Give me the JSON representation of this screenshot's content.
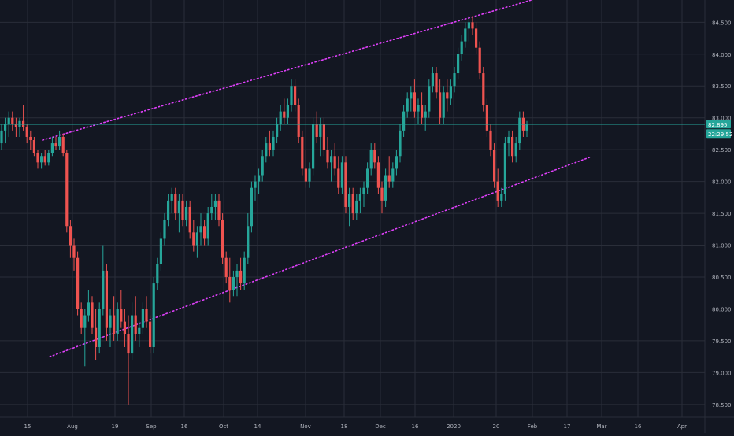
{
  "theme": {
    "background": "#131722",
    "grid": "#2a2e39",
    "text": "#b2b5be",
    "up": "#26a69a",
    "down": "#ef5350",
    "channel": "#e040fb",
    "price_line": "#26a69a"
  },
  "chart_data": {
    "type": "candlestick",
    "title": "",
    "xlabel": "",
    "ylabel": "",
    "ylim": [
      78.3,
      84.85
    ],
    "y_ticks": [
      "78.500",
      "79.000",
      "79.500",
      "80.000",
      "80.500",
      "81.000",
      "81.500",
      "82.000",
      "82.500",
      "83.000",
      "83.500",
      "84.000",
      "84.500"
    ],
    "x_ticks": [
      "15",
      "Aug",
      "19",
      "Sep",
      "16",
      "Oct",
      "14",
      "Nov",
      "18",
      "Dec",
      "16",
      "2020",
      "20",
      "Feb",
      "17",
      "Mar",
      "16",
      "Apr"
    ],
    "last_price": "82.895",
    "countdown": "22:29:52",
    "channel_upper": {
      "start": [
        0,
        82.65
      ],
      "end": [
        135,
        84.85
      ]
    },
    "channel_lower": {
      "start": [
        2,
        79.25
      ],
      "end": [
        151,
        82.38
      ]
    },
    "ohlc": [
      [
        82.6,
        82.9,
        82.5,
        82.8
      ],
      [
        82.8,
        83.0,
        82.6,
        82.9
      ],
      [
        82.9,
        83.1,
        82.7,
        83.0
      ],
      [
        83.0,
        83.1,
        82.8,
        82.9
      ],
      [
        82.9,
        83.0,
        82.7,
        82.85
      ],
      [
        82.85,
        83.0,
        82.7,
        82.95
      ],
      [
        82.95,
        83.2,
        82.8,
        82.85
      ],
      [
        82.85,
        82.9,
        82.6,
        82.7
      ],
      [
        82.7,
        82.8,
        82.5,
        82.65
      ],
      [
        82.65,
        82.7,
        82.4,
        82.45
      ],
      [
        82.45,
        82.5,
        82.2,
        82.3
      ],
      [
        82.3,
        82.45,
        82.2,
        82.4
      ],
      [
        82.4,
        82.5,
        82.25,
        82.3
      ],
      [
        82.3,
        82.5,
        82.25,
        82.45
      ],
      [
        82.45,
        82.7,
        82.4,
        82.6
      ],
      [
        82.6,
        82.7,
        82.5,
        82.55
      ],
      [
        82.55,
        82.8,
        82.5,
        82.7
      ],
      [
        82.7,
        82.75,
        82.4,
        82.45
      ],
      [
        82.45,
        82.5,
        81.2,
        81.3
      ],
      [
        81.3,
        81.4,
        80.8,
        81.0
      ],
      [
        81.0,
        81.1,
        80.6,
        80.8
      ],
      [
        80.8,
        80.9,
        79.9,
        80.0
      ],
      [
        80.0,
        80.1,
        79.6,
        79.7
      ],
      [
        79.7,
        80.0,
        79.1,
        79.9
      ],
      [
        79.9,
        80.3,
        79.8,
        80.1
      ],
      [
        80.1,
        80.2,
        79.6,
        79.7
      ],
      [
        79.7,
        80.0,
        79.2,
        79.4
      ],
      [
        79.4,
        80.1,
        79.3,
        80.0
      ],
      [
        80.0,
        81.0,
        79.9,
        80.6
      ],
      [
        80.6,
        80.7,
        79.5,
        79.7
      ],
      [
        79.7,
        80.0,
        79.4,
        79.9
      ],
      [
        79.9,
        80.2,
        79.5,
        79.6
      ],
      [
        79.6,
        80.1,
        79.5,
        80.0
      ],
      [
        80.0,
        80.3,
        79.7,
        79.8
      ],
      [
        79.8,
        80.0,
        79.4,
        79.6
      ],
      [
        79.6,
        79.9,
        78.5,
        79.3
      ],
      [
        79.3,
        80.1,
        79.2,
        79.9
      ],
      [
        79.9,
        80.2,
        79.5,
        79.6
      ],
      [
        79.6,
        79.8,
        79.4,
        79.7
      ],
      [
        79.7,
        80.1,
        79.6,
        80.0
      ],
      [
        80.0,
        80.2,
        79.7,
        79.8
      ],
      [
        79.8,
        79.9,
        79.3,
        79.4
      ],
      [
        79.4,
        80.5,
        79.3,
        80.4
      ],
      [
        80.4,
        80.8,
        80.3,
        80.7
      ],
      [
        80.7,
        81.2,
        80.6,
        81.1
      ],
      [
        81.1,
        81.5,
        81.0,
        81.4
      ],
      [
        81.4,
        81.8,
        81.3,
        81.7
      ],
      [
        81.7,
        81.9,
        81.5,
        81.8
      ],
      [
        81.8,
        81.9,
        81.4,
        81.5
      ],
      [
        81.5,
        81.8,
        81.2,
        81.7
      ],
      [
        81.7,
        81.8,
        81.3,
        81.4
      ],
      [
        81.4,
        81.7,
        81.3,
        81.6
      ],
      [
        81.6,
        81.7,
        81.1,
        81.2
      ],
      [
        81.2,
        81.4,
        80.9,
        81.0
      ],
      [
        81.0,
        81.3,
        80.8,
        81.2
      ],
      [
        81.2,
        81.5,
        81.0,
        81.3
      ],
      [
        81.3,
        81.4,
        81.0,
        81.1
      ],
      [
        81.1,
        81.6,
        81.0,
        81.5
      ],
      [
        81.5,
        81.8,
        81.4,
        81.6
      ],
      [
        81.6,
        81.8,
        81.4,
        81.7
      ],
      [
        81.7,
        81.8,
        81.3,
        81.4
      ],
      [
        81.4,
        81.5,
        80.7,
        80.8
      ],
      [
        80.8,
        80.9,
        80.4,
        80.5
      ],
      [
        80.5,
        80.8,
        80.1,
        80.3
      ],
      [
        80.3,
        80.6,
        80.2,
        80.5
      ],
      [
        80.5,
        80.7,
        80.2,
        80.6
      ],
      [
        80.6,
        80.8,
        80.3,
        80.4
      ],
      [
        80.4,
        80.9,
        80.3,
        80.8
      ],
      [
        80.8,
        81.5,
        80.7,
        81.3
      ],
      [
        81.3,
        82.0,
        81.2,
        81.9
      ],
      [
        81.9,
        82.1,
        81.7,
        82.0
      ],
      [
        82.0,
        82.2,
        81.8,
        82.1
      ],
      [
        82.1,
        82.5,
        82.0,
        82.4
      ],
      [
        82.4,
        82.7,
        82.3,
        82.6
      ],
      [
        82.6,
        82.8,
        82.4,
        82.5
      ],
      [
        82.5,
        82.8,
        82.4,
        82.7
      ],
      [
        82.7,
        83.0,
        82.6,
        82.9
      ],
      [
        82.9,
        83.2,
        82.8,
        83.1
      ],
      [
        83.1,
        83.3,
        82.9,
        83.0
      ],
      [
        83.0,
        83.3,
        82.9,
        83.2
      ],
      [
        83.2,
        83.6,
        83.1,
        83.5
      ],
      [
        83.5,
        83.6,
        83.1,
        83.2
      ],
      [
        83.2,
        83.3,
        82.6,
        82.7
      ],
      [
        82.7,
        82.8,
        82.1,
        82.2
      ],
      [
        82.2,
        82.5,
        81.9,
        82.0
      ],
      [
        82.0,
        82.3,
        81.9,
        82.2
      ],
      [
        82.2,
        83.0,
        82.1,
        82.9
      ],
      [
        82.9,
        83.1,
        82.6,
        82.7
      ],
      [
        82.7,
        83.0,
        82.4,
        82.9
      ],
      [
        82.9,
        83.0,
        82.4,
        82.5
      ],
      [
        82.5,
        82.7,
        82.2,
        82.3
      ],
      [
        82.3,
        82.5,
        82.0,
        82.4
      ],
      [
        82.4,
        82.6,
        82.1,
        82.2
      ],
      [
        82.2,
        82.4,
        81.8,
        81.9
      ],
      [
        81.9,
        82.4,
        81.8,
        82.3
      ],
      [
        82.3,
        82.4,
        81.5,
        81.6
      ],
      [
        81.6,
        81.9,
        81.3,
        81.8
      ],
      [
        81.8,
        81.9,
        81.4,
        81.5
      ],
      [
        81.5,
        81.8,
        81.4,
        81.7
      ],
      [
        81.7,
        81.9,
        81.5,
        81.8
      ],
      [
        81.8,
        82.0,
        81.6,
        81.9
      ],
      [
        81.9,
        82.3,
        81.8,
        82.2
      ],
      [
        82.2,
        82.6,
        82.1,
        82.5
      ],
      [
        82.5,
        82.6,
        82.2,
        82.3
      ],
      [
        82.3,
        82.4,
        81.8,
        81.9
      ],
      [
        81.9,
        82.0,
        81.5,
        81.7
      ],
      [
        81.7,
        82.2,
        81.6,
        82.1
      ],
      [
        82.1,
        82.4,
        81.9,
        82.0
      ],
      [
        82.0,
        82.3,
        81.9,
        82.2
      ],
      [
        82.2,
        82.5,
        82.1,
        82.4
      ],
      [
        82.4,
        82.9,
        82.3,
        82.8
      ],
      [
        82.8,
        83.2,
        82.7,
        83.1
      ],
      [
        83.1,
        83.4,
        83.0,
        83.3
      ],
      [
        83.3,
        83.5,
        83.1,
        83.4
      ],
      [
        83.4,
        83.6,
        83.0,
        83.1
      ],
      [
        83.1,
        83.3,
        82.9,
        83.2
      ],
      [
        83.2,
        83.4,
        82.9,
        83.0
      ],
      [
        83.0,
        83.2,
        82.8,
        83.1
      ],
      [
        83.1,
        83.6,
        83.0,
        83.5
      ],
      [
        83.5,
        83.8,
        83.4,
        83.7
      ],
      [
        83.7,
        83.8,
        83.3,
        83.4
      ],
      [
        83.4,
        83.6,
        82.9,
        83.0
      ],
      [
        83.0,
        83.5,
        82.9,
        83.4
      ],
      [
        83.4,
        83.6,
        83.1,
        83.3
      ],
      [
        83.3,
        83.6,
        83.2,
        83.5
      ],
      [
        83.5,
        83.8,
        83.4,
        83.7
      ],
      [
        83.7,
        84.1,
        83.6,
        84.0
      ],
      [
        84.0,
        84.3,
        83.9,
        84.2
      ],
      [
        84.2,
        84.5,
        84.1,
        84.4
      ],
      [
        84.4,
        84.6,
        84.2,
        84.5
      ],
      [
        84.5,
        84.6,
        84.3,
        84.4
      ],
      [
        84.4,
        84.5,
        84.0,
        84.1
      ],
      [
        84.1,
        84.2,
        83.6,
        83.7
      ],
      [
        83.7,
        83.8,
        83.1,
        83.2
      ],
      [
        83.2,
        83.3,
        82.7,
        82.8
      ],
      [
        82.8,
        82.9,
        82.4,
        82.5
      ],
      [
        82.5,
        82.6,
        81.9,
        82.0
      ],
      [
        82.0,
        82.2,
        81.6,
        81.7
      ],
      [
        81.7,
        81.9,
        81.6,
        81.8
      ],
      [
        81.8,
        82.7,
        81.7,
        82.6
      ],
      [
        82.6,
        82.8,
        82.4,
        82.7
      ],
      [
        82.7,
        82.8,
        82.3,
        82.4
      ],
      [
        82.4,
        82.7,
        82.3,
        82.6
      ],
      [
        82.6,
        83.1,
        82.5,
        83.0
      ],
      [
        83.0,
        83.1,
        82.7,
        82.8
      ],
      [
        82.8,
        82.95,
        82.7,
        82.9
      ]
    ]
  }
}
